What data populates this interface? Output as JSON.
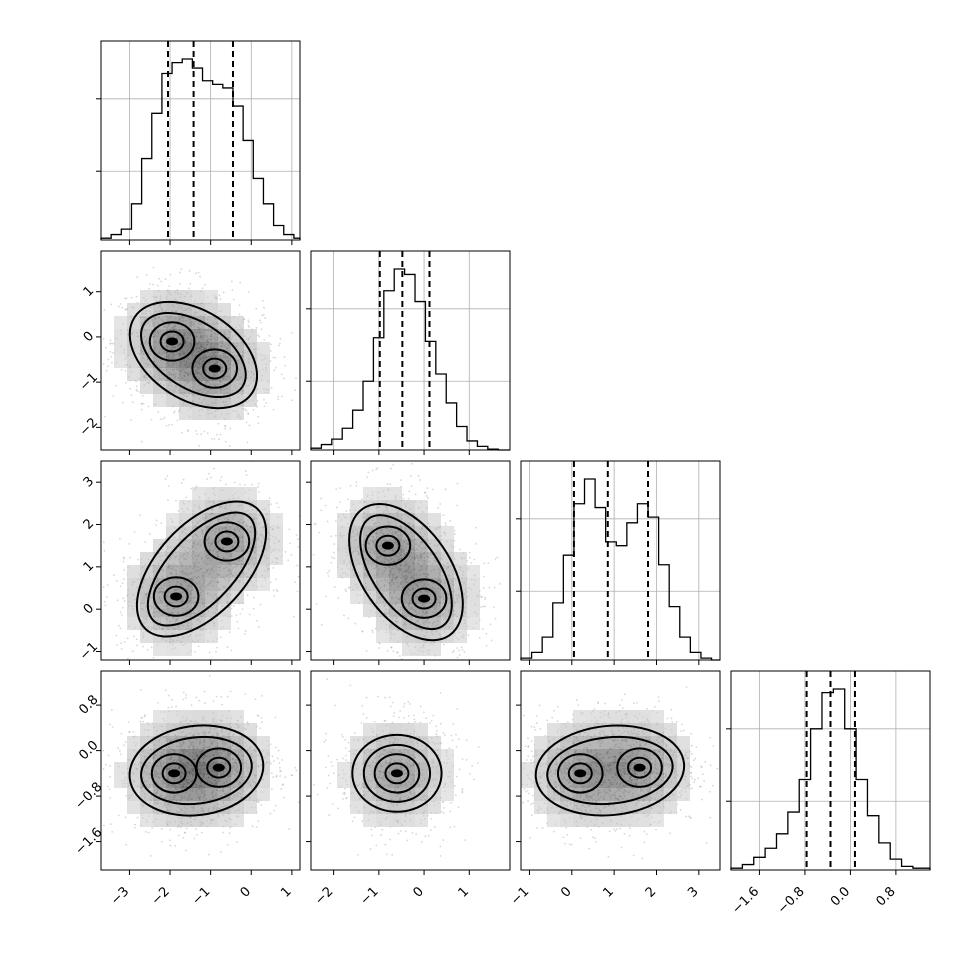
{
  "chart_data": {
    "type": "corner",
    "grid_on_diagonal": true,
    "dimensions": [
      {
        "id": "p0",
        "range": [
          -3.7,
          1.2
        ],
        "ticks": [
          -3,
          -2,
          -1,
          0,
          1
        ],
        "tick_labels": [
          "−3",
          "−2",
          "−1",
          "0",
          "1"
        ],
        "quantiles": [
          -2.05,
          -1.42,
          -0.45
        ]
      },
      {
        "id": "p1",
        "range": [
          -2.5,
          1.9
        ],
        "ticks": [
          -2,
          -1,
          0,
          1
        ],
        "tick_labels": [
          "−2",
          "−1",
          "0",
          "1"
        ],
        "quantiles": [
          -0.98,
          -0.48,
          0.12
        ]
      },
      {
        "id": "p2",
        "range": [
          -1.2,
          3.5
        ],
        "ticks": [
          -1,
          0,
          1,
          2,
          3
        ],
        "tick_labels": [
          "−1",
          "0",
          "1",
          "2",
          "3"
        ],
        "quantiles": [
          0.05,
          0.85,
          1.8
        ]
      },
      {
        "id": "p3",
        "range": [
          -2.1,
          1.4
        ],
        "ticks": [
          -1.6,
          -0.8,
          0.0,
          0.8
        ],
        "tick_labels": [
          "−1.6",
          "−0.8",
          "0.0",
          "0.8"
        ],
        "quantiles": [
          -0.77,
          -0.35,
          0.08
        ]
      }
    ],
    "histograms": [
      {
        "dim": 0,
        "bin_edges": [
          -3.7,
          -3.45,
          -3.2,
          -2.95,
          -2.7,
          -2.45,
          -2.2,
          -1.95,
          -1.7,
          -1.45,
          -1.2,
          -0.95,
          -0.7,
          -0.45,
          -0.2,
          0.05,
          0.3,
          0.55,
          0.8,
          1.05,
          1.2
        ],
        "counts": [
          0.01,
          0.03,
          0.06,
          0.2,
          0.45,
          0.7,
          0.92,
          0.98,
          1.0,
          0.95,
          0.88,
          0.86,
          0.84,
          0.74,
          0.55,
          0.34,
          0.2,
          0.08,
          0.03,
          0.01
        ]
      },
      {
        "dim": 1,
        "bin_edges": [
          -2.5,
          -2.27,
          -2.04,
          -1.81,
          -1.58,
          -1.35,
          -1.12,
          -0.89,
          -0.66,
          -0.43,
          -0.2,
          0.03,
          0.26,
          0.49,
          0.72,
          0.95,
          1.18,
          1.41,
          1.64,
          1.9
        ],
        "counts": [
          0.01,
          0.03,
          0.06,
          0.12,
          0.22,
          0.38,
          0.62,
          0.88,
          1.0,
          0.97,
          0.82,
          0.6,
          0.42,
          0.26,
          0.13,
          0.05,
          0.02,
          0.005,
          0.0
        ]
      },
      {
        "dim": 2,
        "bin_edges": [
          -1.2,
          -0.95,
          -0.7,
          -0.45,
          -0.2,
          0.05,
          0.3,
          0.55,
          0.8,
          1.05,
          1.3,
          1.55,
          1.8,
          2.05,
          2.3,
          2.55,
          2.8,
          3.05,
          3.3,
          3.5
        ],
        "counts": [
          0.01,
          0.04,
          0.12,
          0.3,
          0.55,
          0.82,
          0.95,
          0.8,
          0.62,
          0.6,
          0.72,
          0.82,
          0.75,
          0.5,
          0.28,
          0.12,
          0.04,
          0.01,
          0.0
        ]
      },
      {
        "dim": 3,
        "bin_edges": [
          -2.1,
          -1.9,
          -1.7,
          -1.5,
          -1.3,
          -1.1,
          -0.9,
          -0.7,
          -0.5,
          -0.3,
          -0.1,
          0.1,
          0.3,
          0.5,
          0.7,
          0.9,
          1.1,
          1.4
        ],
        "counts": [
          0.01,
          0.03,
          0.07,
          0.12,
          0.2,
          0.32,
          0.5,
          0.78,
          0.98,
          1.0,
          0.78,
          0.5,
          0.3,
          0.15,
          0.06,
          0.02,
          0.01
        ]
      }
    ],
    "pairs": [
      {
        "x_dim": 0,
        "y_dim": 1,
        "modes": [
          {
            "x": -1.95,
            "y": -0.1
          },
          {
            "x": -0.9,
            "y": -0.7
          }
        ]
      },
      {
        "x_dim": 0,
        "y_dim": 2,
        "modes": [
          {
            "x": -1.85,
            "y": 0.3
          },
          {
            "x": -0.6,
            "y": 1.6
          }
        ]
      },
      {
        "x_dim": 1,
        "y_dim": 2,
        "modes": [
          {
            "x": -0.8,
            "y": 1.5
          },
          {
            "x": 0.0,
            "y": 0.25
          }
        ]
      },
      {
        "x_dim": 0,
        "y_dim": 3,
        "modes": [
          {
            "x": -1.9,
            "y": -0.4
          },
          {
            "x": -0.8,
            "y": -0.3
          }
        ]
      },
      {
        "x_dim": 1,
        "y_dim": 3,
        "modes": [
          {
            "x": -0.6,
            "y": -0.4
          }
        ]
      },
      {
        "x_dim": 2,
        "y_dim": 3,
        "modes": [
          {
            "x": 0.2,
            "y": -0.4
          },
          {
            "x": 1.6,
            "y": -0.3
          }
        ]
      }
    ]
  }
}
